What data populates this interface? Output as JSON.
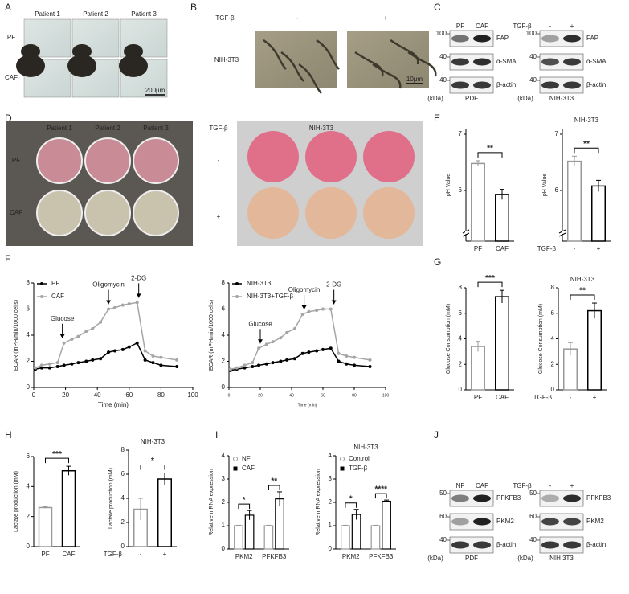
{
  "panels": {
    "labels": [
      "A",
      "B",
      "C",
      "D",
      "E",
      "F",
      "G",
      "H",
      "I",
      "J"
    ],
    "A": {
      "columns": [
        "Patient 1",
        "Patient 2",
        "Patient 3"
      ],
      "rows": [
        "PF",
        "CAF"
      ],
      "scale": "200μm"
    },
    "B": {
      "factor": "TGF-β",
      "conditions": [
        "-",
        "+"
      ],
      "row": "NIH-3T3",
      "scale": "10μm"
    },
    "C": {
      "left": {
        "lanes": [
          "PF",
          "CAF"
        ],
        "markers": [
          100,
          40,
          40
        ],
        "proteins": [
          "FAP",
          "α-SMA",
          "β-actin"
        ],
        "unit": "(kDa)",
        "caption": "PDF"
      },
      "right": {
        "factor": "TGF-β",
        "lanes": [
          "-",
          "+"
        ],
        "markers": [
          100,
          40,
          40
        ],
        "proteins": [
          "FAP",
          "α-SMA",
          "β-actin"
        ],
        "unit": "(kDa)",
        "caption": "NIH-3T3"
      }
    },
    "D": {
      "left": {
        "columns": [
          "Patient 1",
          "Patient 2",
          "Patient 3"
        ],
        "rows": [
          "PF",
          "CAF"
        ]
      },
      "right": {
        "factor": "TGF-β",
        "title": "NIH-3T3",
        "rows": [
          "-",
          "+"
        ]
      }
    },
    "J": {
      "left": {
        "lanes": [
          "NF",
          "CAF"
        ],
        "markers": [
          50,
          60,
          40
        ],
        "proteins": [
          "PFKFB3",
          "PKM2",
          "β-actin"
        ],
        "unit": "(kDa)",
        "caption": "PDF"
      },
      "right": {
        "factor": "TGF-β",
        "lanes": [
          "-",
          "+"
        ],
        "markers": [
          50,
          60,
          40
        ],
        "proteins": [
          "PFKFB3",
          "PKM2",
          "β-actin"
        ],
        "unit": "(kDa)",
        "caption": "NIH 3T3"
      }
    }
  },
  "chart_data": [
    {
      "type": "bar",
      "ylabel": "pH Value",
      "categories": [
        "PF",
        "CAF"
      ],
      "values": [
        6.48,
        5.93
      ],
      "errors": [
        0.05,
        0.09
      ],
      "colors": [
        "#999999",
        "#000000"
      ],
      "ylim": [
        5.1,
        7.1
      ],
      "yticks": [
        6,
        7
      ],
      "axis_break": true,
      "significance": "**"
    },
    {
      "type": "bar",
      "title": "NIH-3T3",
      "ylabel": "pH Value",
      "xlabel": "TGF-β",
      "categories": [
        "-",
        "+"
      ],
      "values": [
        6.52,
        6.08
      ],
      "errors": [
        0.09,
        0.1
      ],
      "colors": [
        "#999999",
        "#000000"
      ],
      "ylim": [
        5.1,
        7.1
      ],
      "yticks": [
        6,
        7
      ],
      "axis_break": true,
      "significance": "**"
    },
    {
      "type": "line",
      "xlabel": "Time (min)",
      "ylabel": "ECAR (mPH/min/1000 cells)",
      "x": [
        1,
        5,
        10,
        15,
        19,
        24,
        28,
        33,
        37,
        42,
        47,
        51,
        56,
        60,
        65,
        70,
        75,
        80,
        90
      ],
      "series": [
        {
          "name": "PF",
          "color": "#000000",
          "values": [
            1.4,
            1.5,
            1.5,
            1.6,
            1.7,
            1.8,
            1.9,
            2.0,
            2.1,
            2.2,
            2.7,
            2.8,
            2.9,
            3.1,
            3.4,
            2.1,
            1.9,
            1.7,
            1.6
          ]
        },
        {
          "name": "CAF",
          "color": "#a6a6a6",
          "values": [
            1.5,
            1.7,
            1.8,
            1.9,
            3.4,
            3.7,
            3.9,
            4.3,
            4.5,
            5.0,
            6.0,
            6.1,
            6.3,
            6.4,
            6.5,
            2.8,
            2.4,
            2.3,
            2.1
          ]
        }
      ],
      "xlim": [
        0,
        100
      ],
      "ylim": [
        0,
        8
      ],
      "xticks": [
        0,
        20,
        40,
        60,
        80,
        100
      ],
      "yticks": [
        0,
        2,
        4,
        6,
        8
      ],
      "annotations": [
        {
          "text": "Glucose",
          "x": 18
        },
        {
          "text": "Oligomycin",
          "x": 47
        },
        {
          "text": "2-DG",
          "x": 66
        }
      ]
    },
    {
      "type": "line",
      "xlabel": "Time (min)",
      "ylabel": "ECAR (mPH/min/1000 cells)",
      "tiny_x_labels": true,
      "x": [
        1,
        5,
        10,
        15,
        19,
        24,
        28,
        33,
        37,
        42,
        47,
        51,
        56,
        60,
        65,
        70,
        75,
        80,
        90
      ],
      "series": [
        {
          "name": "NIH-3T3",
          "color": "#000000",
          "values": [
            1.3,
            1.4,
            1.5,
            1.6,
            1.7,
            1.8,
            1.9,
            2.0,
            2.1,
            2.2,
            2.6,
            2.7,
            2.8,
            2.9,
            3.0,
            2.0,
            1.8,
            1.7,
            1.6
          ]
        },
        {
          "name": "NIH-3T3+TGF-β",
          "color": "#a6a6a6",
          "values": [
            1.4,
            1.5,
            1.7,
            1.9,
            3.0,
            3.3,
            3.5,
            3.8,
            4.2,
            4.5,
            5.6,
            5.8,
            5.9,
            6.0,
            6.0,
            2.6,
            2.4,
            2.3,
            2.1
          ]
        }
      ],
      "xlim": [
        0,
        100
      ],
      "ylim": [
        0,
        8
      ],
      "xticks": [
        0,
        20,
        40,
        60,
        80,
        100
      ],
      "yticks": [
        0,
        2,
        4,
        6,
        8
      ],
      "annotations": [
        {
          "text": "Glucose",
          "x": 20
        },
        {
          "text": "Oligomycin",
          "x": 48
        },
        {
          "text": "2-DG",
          "x": 67
        }
      ]
    },
    {
      "type": "bar",
      "ylabel": "Glucose Consumption (mM)",
      "categories": [
        "PF",
        "CAF"
      ],
      "values": [
        3.4,
        7.3
      ],
      "errors": [
        0.4,
        0.5
      ],
      "colors": [
        "#999999",
        "#000000"
      ],
      "ylim": [
        0,
        8
      ],
      "yticks": [
        0,
        2,
        4,
        6,
        8
      ],
      "significance": "***"
    },
    {
      "type": "bar",
      "title": "NIH-3T3",
      "ylabel": "Glucose Consumption (mM)",
      "xlabel": "TGF-β",
      "categories": [
        "-",
        "+"
      ],
      "values": [
        3.2,
        6.2
      ],
      "errors": [
        0.5,
        0.6
      ],
      "colors": [
        "#999999",
        "#000000"
      ],
      "ylim": [
        0,
        8
      ],
      "yticks": [
        0,
        2,
        4,
        6,
        8
      ],
      "significance": "**"
    },
    {
      "type": "bar",
      "ylabel": "Lactate production (mM)",
      "categories": [
        "PF",
        "CAF"
      ],
      "values": [
        2.6,
        5.05
      ],
      "errors": [
        0.05,
        0.3
      ],
      "colors": [
        "#999999",
        "#000000"
      ],
      "ylim": [
        0,
        6
      ],
      "yticks": [
        0,
        2,
        4,
        6
      ],
      "significance": "***"
    },
    {
      "type": "bar",
      "title": "NIH-3T3",
      "ylabel": "Lactate production (mM)",
      "xlabel": "TGF-β",
      "categories": [
        "-",
        "+"
      ],
      "values": [
        3.1,
        5.6
      ],
      "errors": [
        0.9,
        0.5
      ],
      "colors": [
        "#999999",
        "#000000"
      ],
      "ylim": [
        0,
        8
      ],
      "yticks": [
        0,
        2,
        4,
        6,
        8
      ],
      "significance": "*"
    },
    {
      "type": "grouped_bar",
      "ylabel": "Relative mRNA expression",
      "categories": [
        "PKM2",
        "PFKFB3"
      ],
      "series": [
        {
          "name": "NF",
          "color": "#999999",
          "values": [
            1,
            1
          ],
          "errors": [
            0.02,
            0.02
          ]
        },
        {
          "name": "CAF",
          "color": "#000000",
          "values": [
            1.45,
            2.15
          ],
          "errors": [
            0.2,
            0.3
          ]
        }
      ],
      "ylim": [
        0,
        4
      ],
      "yticks": [
        0,
        1,
        2,
        3,
        4
      ],
      "significance": [
        "*",
        "**"
      ]
    },
    {
      "type": "grouped_bar",
      "title": "NIH-3T3",
      "ylabel": "Relative mRNA expression",
      "categories": [
        "PKM2",
        "PFKFB3"
      ],
      "series": [
        {
          "name": "Control",
          "color": "#999999",
          "values": [
            1,
            1
          ],
          "errors": [
            0.02,
            0.02
          ]
        },
        {
          "name": "TGF-β",
          "color": "#000000",
          "values": [
            1.48,
            2.05
          ],
          "errors": [
            0.22,
            0.05
          ]
        }
      ],
      "ylim": [
        0,
        4
      ],
      "yticks": [
        0,
        1,
        2,
        3,
        4
      ],
      "significance": [
        "*",
        "****"
      ]
    }
  ]
}
